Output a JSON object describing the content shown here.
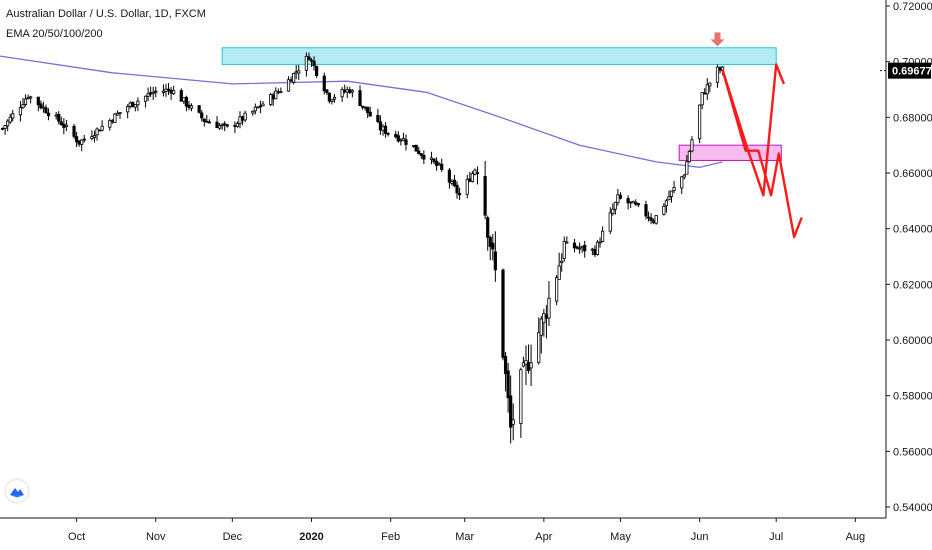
{
  "chart_data": {
    "type": "candlestick",
    "title": "Australian Dollar / U.S. Dollar, 1D, FXCM",
    "indicator": "EMA 20/50/100/200",
    "ylim": [
      0.54,
      0.72
    ],
    "yticks": [
      "0.72000",
      "0.70000",
      "0.68000",
      "0.66000",
      "0.64000",
      "0.62000",
      "0.60000",
      "0.58000",
      "0.56000",
      "0.54000"
    ],
    "ytick_values": [
      0.72,
      0.7,
      0.68,
      0.66,
      0.64,
      0.62,
      0.6,
      0.58,
      0.56,
      0.54
    ],
    "current_price": "0.69677",
    "current_price_value": 0.69677,
    "xticks": [
      "Oct",
      "Nov",
      "Dec",
      "2020",
      "Feb",
      "Mar",
      "Apr",
      "May",
      "Jun",
      "Jul",
      "Aug"
    ],
    "xtick_dates": [
      "2019-10-01",
      "2019-11-01",
      "2019-12-01",
      "2020-01-01",
      "2020-02-01",
      "2020-03-01",
      "2020-04-01",
      "2020-05-01",
      "2020-06-01",
      "2020-07-01",
      "2020-08-01"
    ],
    "date_range": [
      "2019-09-01",
      "2020-08-13"
    ],
    "candle_anchors": [
      [
        "2019-09-02",
        0.676
      ],
      [
        "2019-09-12",
        0.688
      ],
      [
        "2019-09-25",
        0.678
      ],
      [
        "2019-10-02",
        0.671
      ],
      [
        "2019-10-10",
        0.676
      ],
      [
        "2019-10-21",
        0.684
      ],
      [
        "2019-10-31",
        0.689
      ],
      [
        "2019-11-07",
        0.69
      ],
      [
        "2019-11-20",
        0.679
      ],
      [
        "2019-11-29",
        0.676
      ],
      [
        "2019-12-09",
        0.682
      ],
      [
        "2019-12-20",
        0.69
      ],
      [
        "2019-12-31",
        0.702
      ],
      [
        "2020-01-08",
        0.687
      ],
      [
        "2020-01-16",
        0.69
      ],
      [
        "2020-01-28",
        0.676
      ],
      [
        "2020-02-06",
        0.672
      ],
      [
        "2020-02-20",
        0.662
      ],
      [
        "2020-02-28",
        0.652
      ],
      [
        "2020-03-06",
        0.663
      ],
      [
        "2020-03-13",
        0.624
      ],
      [
        "2020-03-19",
        0.568
      ],
      [
        "2020-03-23",
        0.585
      ],
      [
        "2020-04-01",
        0.608
      ],
      [
        "2020-04-09",
        0.634
      ],
      [
        "2020-04-21",
        0.632
      ],
      [
        "2020-04-30",
        0.651
      ],
      [
        "2020-05-07",
        0.648
      ],
      [
        "2020-05-14",
        0.643
      ],
      [
        "2020-05-26",
        0.66
      ],
      [
        "2020-06-02",
        0.688
      ],
      [
        "2020-06-08",
        0.697
      ],
      [
        "2020-06-10",
        0.697
      ]
    ],
    "ema_200": [
      [
        "2019-09-01",
        0.702
      ],
      [
        "2019-10-15",
        0.696
      ],
      [
        "2019-12-01",
        0.692
      ],
      [
        "2020-01-15",
        0.693
      ],
      [
        "2020-02-15",
        0.689
      ],
      [
        "2020-03-15",
        0.68
      ],
      [
        "2020-04-15",
        0.67
      ],
      [
        "2020-05-15",
        0.664
      ],
      [
        "2020-06-01",
        0.662
      ],
      [
        "2020-06-10",
        0.664
      ]
    ],
    "zones": [
      {
        "name": "resistance",
        "color": "#b2ebf2",
        "border": "#26c6da",
        "from": "2019-11-27",
        "to": "2020-07-01",
        "y": [
          0.699,
          0.705
        ]
      },
      {
        "name": "support",
        "color": "#f8bbf0",
        "border": "#c218b3",
        "from": "2020-05-24",
        "to": "2020-07-03",
        "y": [
          0.6645,
          0.67
        ]
      }
    ],
    "projections": [
      {
        "color": "#ff1a1a",
        "points": [
          [
            "2020-06-10",
            0.697
          ],
          [
            "2020-06-20",
            0.668
          ],
          [
            "2020-06-26",
            0.652
          ],
          [
            "2020-07-01",
            0.699
          ],
          [
            "2020-07-04",
            0.692
          ]
        ]
      },
      {
        "color": "#ff1a1a",
        "points": [
          [
            "2020-06-10",
            0.697
          ],
          [
            "2020-06-19",
            0.668
          ],
          [
            "2020-06-24",
            0.668
          ],
          [
            "2020-06-29",
            0.652
          ],
          [
            "2020-07-02",
            0.667
          ],
          [
            "2020-07-08",
            0.637
          ],
          [
            "2020-07-11",
            0.644
          ]
        ]
      }
    ],
    "marker": {
      "date": "2020-06-08",
      "value": 0.7055,
      "color": "#e57373",
      "shape": "arrow-down"
    },
    "grid": false,
    "colors": {
      "up": "#ffffff",
      "down": "#000000",
      "wick": "#000000",
      "ema": "#7b6fd1",
      "axis_text": "#131722",
      "price_label_bg": "#000000"
    }
  },
  "logo": {
    "name": "tradingview-logo",
    "color": "#2962ff"
  }
}
